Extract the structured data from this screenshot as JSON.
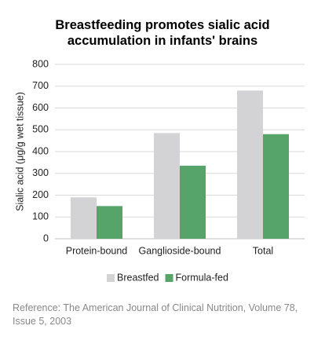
{
  "chart_data": {
    "type": "bar",
    "title": "Breastfeeding promotes sialic acid accumulation in infants' brains",
    "y_label": "Sialic acid (μg/g wet tissue)",
    "categories": [
      "Protein-bound",
      "Ganglioside-bound",
      "Total"
    ],
    "series": [
      {
        "name": "Breastfed",
        "color": "#d3d3d5",
        "values": [
          190,
          485,
          680
        ]
      },
      {
        "name": "Formula-fed",
        "color": "#57a46a",
        "values": [
          150,
          335,
          480
        ]
      }
    ],
    "ylim": [
      0,
      800
    ],
    "yticks": [
      0,
      100,
      200,
      300,
      400,
      500,
      600,
      700,
      800
    ],
    "grid": true,
    "legend": "bottom",
    "source": "Reference: The American Journal of Clinical Nutrition, Volume 78, Issue 5, 2003"
  }
}
